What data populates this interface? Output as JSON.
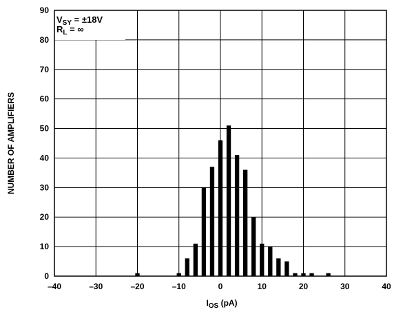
{
  "chart_data": {
    "type": "bar",
    "xlabel": {
      "main": "I",
      "sub": "OS",
      "rest": " (pA)"
    },
    "ylabel": "NUMBER OF AMPLIFIERS",
    "xlim": [
      -40,
      40
    ],
    "ylim": [
      0,
      90
    ],
    "grid": true,
    "x_ticks": [
      "–40",
      "–30",
      "–20",
      "–10",
      "0",
      "10",
      "20",
      "30",
      "40"
    ],
    "y_ticks": [
      "0",
      "10",
      "20",
      "30",
      "40",
      "50",
      "60",
      "70",
      "80",
      "90"
    ],
    "annotation": [
      {
        "main": "V",
        "sub": "SY",
        "rest": " = ±18V"
      },
      {
        "main": "R",
        "sub": "L",
        "rest": " = ∞"
      }
    ],
    "x": [
      -20,
      -10,
      -8,
      -6,
      -4,
      -2,
      0,
      2,
      4,
      6,
      8,
      10,
      12,
      14,
      16,
      18,
      20,
      22,
      26
    ],
    "values": [
      1,
      1,
      6,
      11,
      30,
      37,
      46,
      51,
      41,
      36,
      20,
      11,
      10,
      6,
      5,
      1,
      1,
      1,
      1
    ]
  }
}
